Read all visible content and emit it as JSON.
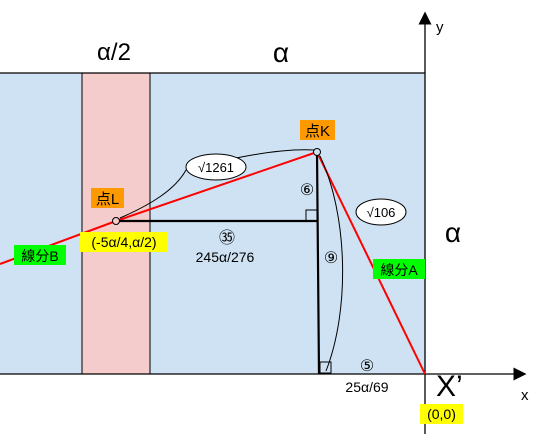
{
  "labels": {
    "top_left_width": "α/2",
    "top_main_width": "α",
    "right_height": "α",
    "axis_y": "y",
    "axis_x": "x",
    "origin_name": "X’",
    "origin_coord": "(0,0)",
    "point_k": "点K",
    "point_l": "点L",
    "point_l_coord": "(-5α/4,α/2)",
    "segment_a": "線分A",
    "segment_b": "線分B",
    "sqrt_1261": "√1261",
    "sqrt_106": "√106",
    "ratio_6": "⑥",
    "ratio_9": "⑨",
    "ratio_35": "㉟",
    "ratio_5": "⑤",
    "len_245": "245α/276",
    "len_25": "25α/69"
  },
  "colors": {
    "region_blue": "#cfe2f3",
    "strip_pink": "#f4cccc",
    "segment_red": "#ff0000",
    "label_orange": "#ff9900",
    "label_green": "#00ff00",
    "label_yellow": "#ffff00"
  }
}
